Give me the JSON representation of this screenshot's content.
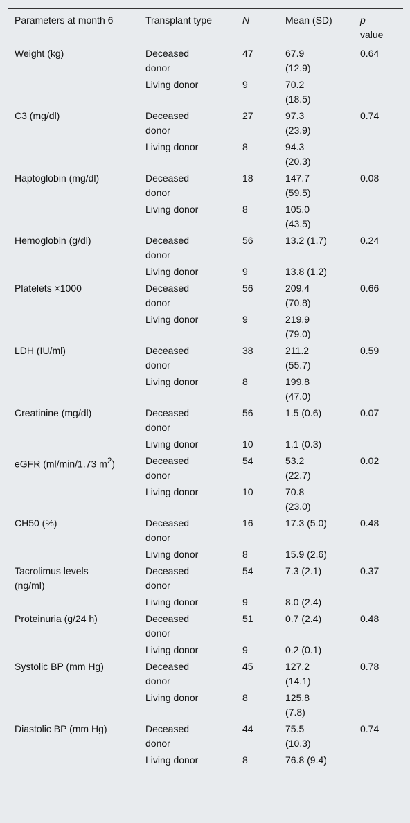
{
  "table": {
    "header": [
      "Parameters at month 6",
      "Transplant type",
      {
        "italic": "N"
      },
      "Mean (SD)",
      {
        "italic": "p",
        "text": "value"
      }
    ],
    "rows": [
      {
        "parameter": {
          "text": "Weight (kg)"
        },
        "p": "0.64",
        "groups": [
          {
            "type": "Deceased donor",
            "n": "47",
            "mean": "67.9 (12.9)"
          },
          {
            "type": "Living donor",
            "n": "9",
            "mean": "70.2 (18.5)"
          }
        ]
      },
      {
        "parameter": {
          "text": "C3 (mg/dl)"
        },
        "p": "0.74",
        "groups": [
          {
            "type": "Deceased donor",
            "n": "27",
            "mean": "97.3 (23.9)"
          },
          {
            "type": "Living donor",
            "n": "8",
            "mean": "94.3 (20.3)"
          }
        ]
      },
      {
        "parameter": {
          "text": "Haptoglobin (mg/dl)"
        },
        "p": "0.08",
        "groups": [
          {
            "type": "Deceased donor",
            "n": "18",
            "mean": "147.7 (59.5)"
          },
          {
            "type": "Living donor",
            "n": "8",
            "mean": "105.0 (43.5)"
          }
        ]
      },
      {
        "parameter": {
          "text": "Hemoglobin (g/dl)"
        },
        "p": "0.24",
        "groups": [
          {
            "type": "Deceased donor",
            "n": "56",
            "mean": "13.2 (1.7)"
          },
          {
            "type": "Living donor",
            "n": "9",
            "mean": "13.8 (1.2)"
          }
        ]
      },
      {
        "parameter": {
          "text": "Platelets ×1000"
        },
        "p": "0.66",
        "groups": [
          {
            "type": "Deceased donor",
            "n": "56",
            "mean": "209.4 (70.8)"
          },
          {
            "type": "Living donor",
            "n": "9",
            "mean": "219.9 (79.0)"
          }
        ]
      },
      {
        "parameter": {
          "text": "LDH (IU/ml)"
        },
        "p": "0.59",
        "groups": [
          {
            "type": "Deceased donor",
            "n": "38",
            "mean": "211.2 (55.7)"
          },
          {
            "type": "Living donor",
            "n": "8",
            "mean": "199.8 (47.0)"
          }
        ]
      },
      {
        "parameter": {
          "text": "Creatinine (mg/dl)"
        },
        "p": "0.07",
        "groups": [
          {
            "type": "Deceased donor",
            "n": "56",
            "mean": "1.5 (0.6)"
          },
          {
            "type": "Living donor",
            "n": "10",
            "mean": "1.1 (0.3)"
          }
        ]
      },
      {
        "parameter": {
          "text": "eGFR (ml/min/1.73 m",
          "sup": "2",
          "tail": ")"
        },
        "p": "0.02",
        "groups": [
          {
            "type": "Deceased donor",
            "n": "54",
            "mean": "53.2 (22.7)"
          },
          {
            "type": "Living donor",
            "n": "10",
            "mean": "70.8 (23.0)"
          }
        ]
      },
      {
        "parameter": {
          "text": "CH50 (%)"
        },
        "p": "0.48",
        "groups": [
          {
            "type": "Deceased donor",
            "n": "16",
            "mean": "17.3 (5.0)"
          },
          {
            "type": "Living donor",
            "n": "8",
            "mean": "15.9 (2.6)"
          }
        ]
      },
      {
        "parameter": {
          "text": "Tacrolimus levels (ng/ml)"
        },
        "p": "0.37",
        "groups": [
          {
            "type": "Deceased donor",
            "n": "54",
            "mean": "7.3 (2.1)"
          },
          {
            "type": "Living donor",
            "n": "9",
            "mean": "8.0 (2.4)"
          }
        ]
      },
      {
        "parameter": {
          "text": "Proteinuria (g/24 h)"
        },
        "p": "0.48",
        "groups": [
          {
            "type": "Deceased donor",
            "n": "51",
            "mean": "0.7 (2.4)"
          },
          {
            "type": "Living donor",
            "n": "9",
            "mean": "0.2 (0.1)"
          }
        ]
      },
      {
        "parameter": {
          "text": "Systolic BP (mm Hg)"
        },
        "p": "0.78",
        "groups": [
          {
            "type": "Deceased donor",
            "n": "45",
            "mean": "127.2 (14.1)"
          },
          {
            "type": "Living donor",
            "n": "8",
            "mean": "125.8 (7.8)"
          }
        ]
      },
      {
        "parameter": {
          "text": "Diastolic BP (mm Hg)"
        },
        "p": "0.74",
        "groups": [
          {
            "type": "Deceased donor",
            "n": "44",
            "mean": "75.5 (10.3)"
          },
          {
            "type": "Living donor",
            "n": "8",
            "mean": "76.8 (9.4)"
          }
        ]
      }
    ]
  }
}
